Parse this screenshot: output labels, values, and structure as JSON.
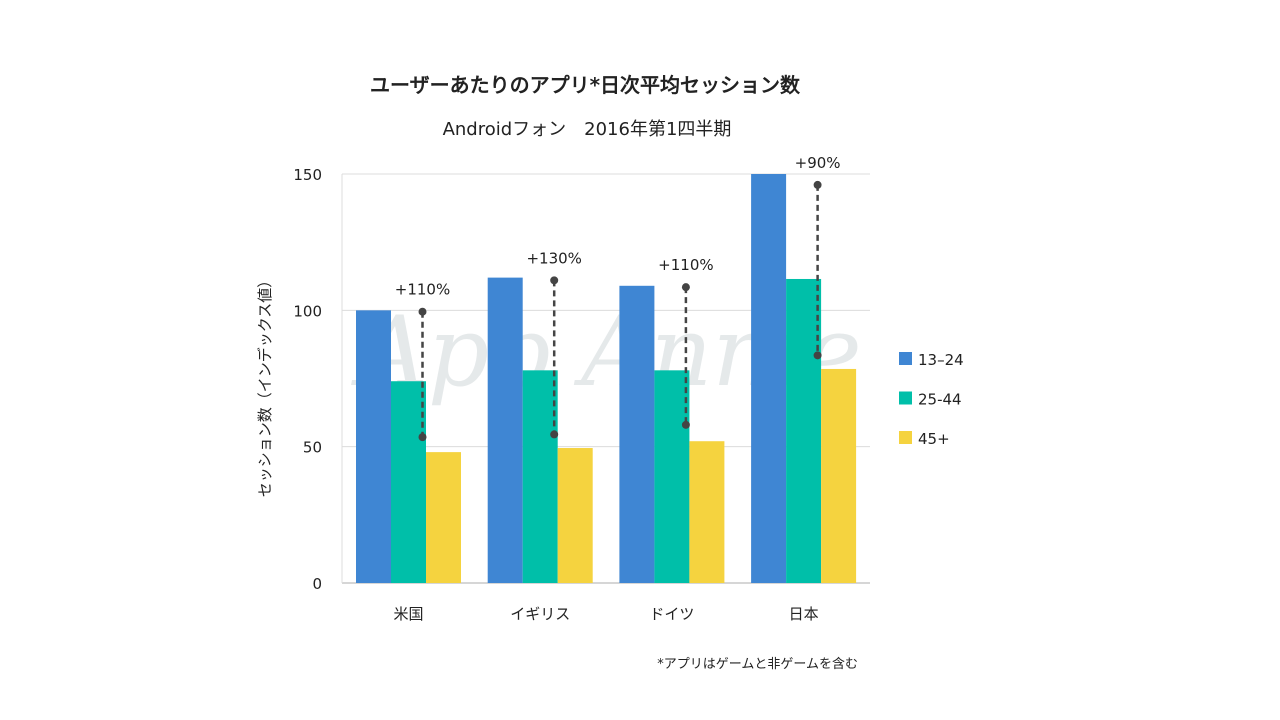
{
  "chart_data": {
    "type": "bar",
    "title": "ユーザーあたりのアプリ*日次平均セッション数",
    "subtitle": "Androidフォン　2016年第1四半期",
    "xlabel": "",
    "ylabel": "セッション数（インデックス値）",
    "ylim": [
      0,
      150
    ],
    "yticks": [
      "0",
      "50",
      "100",
      "150"
    ],
    "ytick_values": [
      0,
      50,
      100,
      150
    ],
    "grid": true,
    "legend_position": "right",
    "categories": [
      "米国",
      "イギリス",
      "ドイツ",
      "日本"
    ],
    "series": [
      {
        "name": "13–24",
        "color": "#3f86d3",
        "values": [
          100,
          112,
          109,
          150
        ]
      },
      {
        "name": "25-44",
        "color": "#00bfa9",
        "values": [
          74,
          78,
          78,
          111.5
        ]
      },
      {
        "name": "45+",
        "color": "#f5d33f",
        "values": [
          48,
          49.5,
          52,
          78.5
        ]
      }
    ],
    "annotations": [
      {
        "label": "+110%",
        "from": 99.5,
        "to": 53.5
      },
      {
        "label": "+130%",
        "from": 111,
        "to": 54.5
      },
      {
        "label": "+110%",
        "from": 108.5,
        "to": 58
      },
      {
        "label": "+90%",
        "from": 146,
        "to": 83.5
      }
    ],
    "footnote": "*アプリはゲームと非ゲームを含む",
    "watermark": "App Annie"
  }
}
